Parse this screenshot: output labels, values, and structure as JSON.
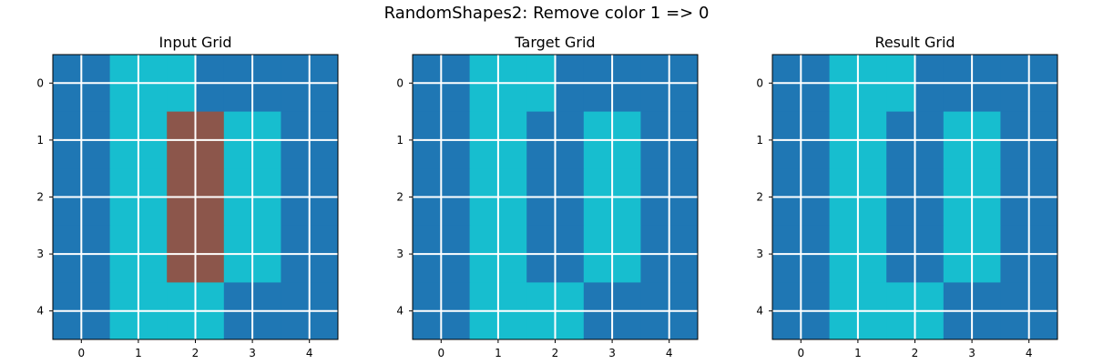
{
  "figure_title": "RandomShapes2: Remove color 1 => 0",
  "colors": {
    "0": "#1f77b4",
    "1": "#8c564b",
    "2": "#17becf",
    "grid_line": "#ffffff",
    "frame": "#000000"
  },
  "chart_data": [
    {
      "type": "heatmap",
      "title": "Input Grid",
      "x_ticks": [
        0,
        1,
        2,
        3,
        4
      ],
      "y_ticks": [
        0,
        1,
        2,
        3,
        4
      ],
      "xlim": [
        -0.5,
        4.5
      ],
      "ylim": [
        4.5,
        -0.5
      ],
      "grid": true,
      "values": [
        [
          0,
          0,
          2,
          2,
          2,
          0,
          0,
          0,
          0,
          0
        ],
        [
          0,
          0,
          2,
          2,
          2,
          0,
          0,
          0,
          0,
          0
        ],
        [
          0,
          0,
          2,
          2,
          1,
          1,
          2,
          2,
          0,
          0
        ],
        [
          0,
          0,
          2,
          2,
          1,
          1,
          2,
          2,
          0,
          0
        ],
        [
          0,
          0,
          2,
          2,
          1,
          1,
          2,
          2,
          0,
          0
        ],
        [
          0,
          0,
          2,
          2,
          1,
          1,
          2,
          2,
          0,
          0
        ],
        [
          0,
          0,
          2,
          2,
          1,
          1,
          2,
          2,
          0,
          0
        ],
        [
          0,
          0,
          2,
          2,
          1,
          1,
          2,
          2,
          0,
          0
        ],
        [
          0,
          0,
          2,
          2,
          2,
          2,
          0,
          0,
          0,
          0
        ],
        [
          0,
          0,
          2,
          2,
          2,
          2,
          0,
          0,
          0,
          0
        ]
      ]
    },
    {
      "type": "heatmap",
      "title": "Target Grid",
      "x_ticks": [
        0,
        1,
        2,
        3,
        4
      ],
      "y_ticks": [
        0,
        1,
        2,
        3,
        4
      ],
      "xlim": [
        -0.5,
        4.5
      ],
      "ylim": [
        4.5,
        -0.5
      ],
      "grid": true,
      "values": [
        [
          0,
          0,
          2,
          2,
          2,
          0,
          0,
          0,
          0,
          0
        ],
        [
          0,
          0,
          2,
          2,
          2,
          0,
          0,
          0,
          0,
          0
        ],
        [
          0,
          0,
          2,
          2,
          0,
          0,
          2,
          2,
          0,
          0
        ],
        [
          0,
          0,
          2,
          2,
          0,
          0,
          2,
          2,
          0,
          0
        ],
        [
          0,
          0,
          2,
          2,
          0,
          0,
          2,
          2,
          0,
          0
        ],
        [
          0,
          0,
          2,
          2,
          0,
          0,
          2,
          2,
          0,
          0
        ],
        [
          0,
          0,
          2,
          2,
          0,
          0,
          2,
          2,
          0,
          0
        ],
        [
          0,
          0,
          2,
          2,
          0,
          0,
          2,
          2,
          0,
          0
        ],
        [
          0,
          0,
          2,
          2,
          2,
          2,
          0,
          0,
          0,
          0
        ],
        [
          0,
          0,
          2,
          2,
          2,
          2,
          0,
          0,
          0,
          0
        ]
      ]
    },
    {
      "type": "heatmap",
      "title": "Result Grid",
      "x_ticks": [
        0,
        1,
        2,
        3,
        4
      ],
      "y_ticks": [
        0,
        1,
        2,
        3,
        4
      ],
      "xlim": [
        -0.5,
        4.5
      ],
      "ylim": [
        4.5,
        -0.5
      ],
      "grid": true,
      "values": [
        [
          0,
          0,
          2,
          2,
          2,
          0,
          0,
          0,
          0,
          0
        ],
        [
          0,
          0,
          2,
          2,
          2,
          0,
          0,
          0,
          0,
          0
        ],
        [
          0,
          0,
          2,
          2,
          0,
          0,
          2,
          2,
          0,
          0
        ],
        [
          0,
          0,
          2,
          2,
          0,
          0,
          2,
          2,
          0,
          0
        ],
        [
          0,
          0,
          2,
          2,
          0,
          0,
          2,
          2,
          0,
          0
        ],
        [
          0,
          0,
          2,
          2,
          0,
          0,
          2,
          2,
          0,
          0
        ],
        [
          0,
          0,
          2,
          2,
          0,
          0,
          2,
          2,
          0,
          0
        ],
        [
          0,
          0,
          2,
          2,
          0,
          0,
          2,
          2,
          0,
          0
        ],
        [
          0,
          0,
          2,
          2,
          2,
          2,
          0,
          0,
          0,
          0
        ],
        [
          0,
          0,
          2,
          2,
          2,
          2,
          0,
          0,
          0,
          0
        ]
      ]
    }
  ]
}
